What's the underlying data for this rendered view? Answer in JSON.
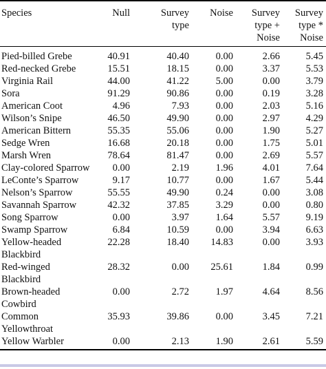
{
  "table": {
    "headers": {
      "species": "Species",
      "null": "Null",
      "survey_type": [
        "Survey",
        "type"
      ],
      "noise": "Noise",
      "survey_plus_noise": [
        "Survey",
        "type +",
        "Noise"
      ],
      "survey_times_noise": [
        "Survey",
        "type *",
        "Noise"
      ]
    },
    "rows": [
      {
        "species": "Pied-billed Grebe",
        "null": "40.91",
        "survey_type": "40.40",
        "noise": "0.00",
        "survey_plus_noise": "2.66",
        "survey_times_noise": "5.45"
      },
      {
        "species": "Red-necked Grebe",
        "null": "15.51",
        "survey_type": "18.15",
        "noise": "0.00",
        "survey_plus_noise": "3.37",
        "survey_times_noise": "5.53"
      },
      {
        "species": "Virginia Rail",
        "null": "44.00",
        "survey_type": "41.22",
        "noise": "5.00",
        "survey_plus_noise": "0.00",
        "survey_times_noise": "3.79"
      },
      {
        "species": "Sora",
        "null": "91.29",
        "survey_type": "90.86",
        "noise": "0.00",
        "survey_plus_noise": "0.19",
        "survey_times_noise": "3.28"
      },
      {
        "species": "American Coot",
        "null": "4.96",
        "survey_type": "7.93",
        "noise": "0.00",
        "survey_plus_noise": "2.03",
        "survey_times_noise": "5.16"
      },
      {
        "species": "Wilson’s Snipe",
        "null": "46.50",
        "survey_type": "49.90",
        "noise": "0.00",
        "survey_plus_noise": "2.97",
        "survey_times_noise": "4.29"
      },
      {
        "species": "American Bittern",
        "null": "55.35",
        "survey_type": "55.06",
        "noise": "0.00",
        "survey_plus_noise": "1.90",
        "survey_times_noise": "5.27"
      },
      {
        "species": "Sedge Wren",
        "null": "16.68",
        "survey_type": "20.18",
        "noise": "0.00",
        "survey_plus_noise": "1.75",
        "survey_times_noise": "5.01"
      },
      {
        "species": "Marsh Wren",
        "null": "78.64",
        "survey_type": "81.47",
        "noise": "0.00",
        "survey_plus_noise": "2.69",
        "survey_times_noise": "5.57"
      },
      {
        "species": "Clay-colored Sparrow",
        "null": "0.00",
        "survey_type": "2.19",
        "noise": "1.96",
        "survey_plus_noise": "4.01",
        "survey_times_noise": "7.64"
      },
      {
        "species": "LeConte’s Sparrow",
        "null": "9.17",
        "survey_type": "10.77",
        "noise": "0.00",
        "survey_plus_noise": "1.67",
        "survey_times_noise": "5.44"
      },
      {
        "species": "Nelson’s Sparrow",
        "null": "55.55",
        "survey_type": "49.90",
        "noise": "0.24",
        "survey_plus_noise": "0.00",
        "survey_times_noise": "3.08"
      },
      {
        "species": "Savannah Sparrow",
        "null": "42.32",
        "survey_type": "37.85",
        "noise": "3.29",
        "survey_plus_noise": "0.00",
        "survey_times_noise": "0.80"
      },
      {
        "species": "Song Sparrow",
        "null": "0.00",
        "survey_type": "3.97",
        "noise": "1.64",
        "survey_plus_noise": "5.57",
        "survey_times_noise": "9.19"
      },
      {
        "species": "Swamp Sparrow",
        "null": "6.84",
        "survey_type": "10.59",
        "noise": "0.00",
        "survey_plus_noise": "3.94",
        "survey_times_noise": "6.63"
      },
      {
        "species": "Yellow-headed Blackbird",
        "null": "22.28",
        "survey_type": "18.40",
        "noise": "14.83",
        "survey_plus_noise": "0.00",
        "survey_times_noise": "3.93"
      },
      {
        "species": "Red-winged Blackbird",
        "null": "28.32",
        "survey_type": "0.00",
        "noise": "25.61",
        "survey_plus_noise": "1.84",
        "survey_times_noise": "0.99"
      },
      {
        "species": "Brown-headed Cowbird",
        "null": "0.00",
        "survey_type": "2.72",
        "noise": "1.97",
        "survey_plus_noise": "4.64",
        "survey_times_noise": "8.56"
      },
      {
        "species": "Common Yellowthroat",
        "null": "35.93",
        "survey_type": "39.86",
        "noise": "0.00",
        "survey_plus_noise": "3.45",
        "survey_times_noise": "7.21"
      },
      {
        "species": "Yellow Warbler",
        "null": "0.00",
        "survey_type": "2.13",
        "noise": "1.90",
        "survey_plus_noise": "2.61",
        "survey_times_noise": "5.59"
      }
    ]
  },
  "colors": {
    "footer_bar": "#c9c9e6"
  }
}
